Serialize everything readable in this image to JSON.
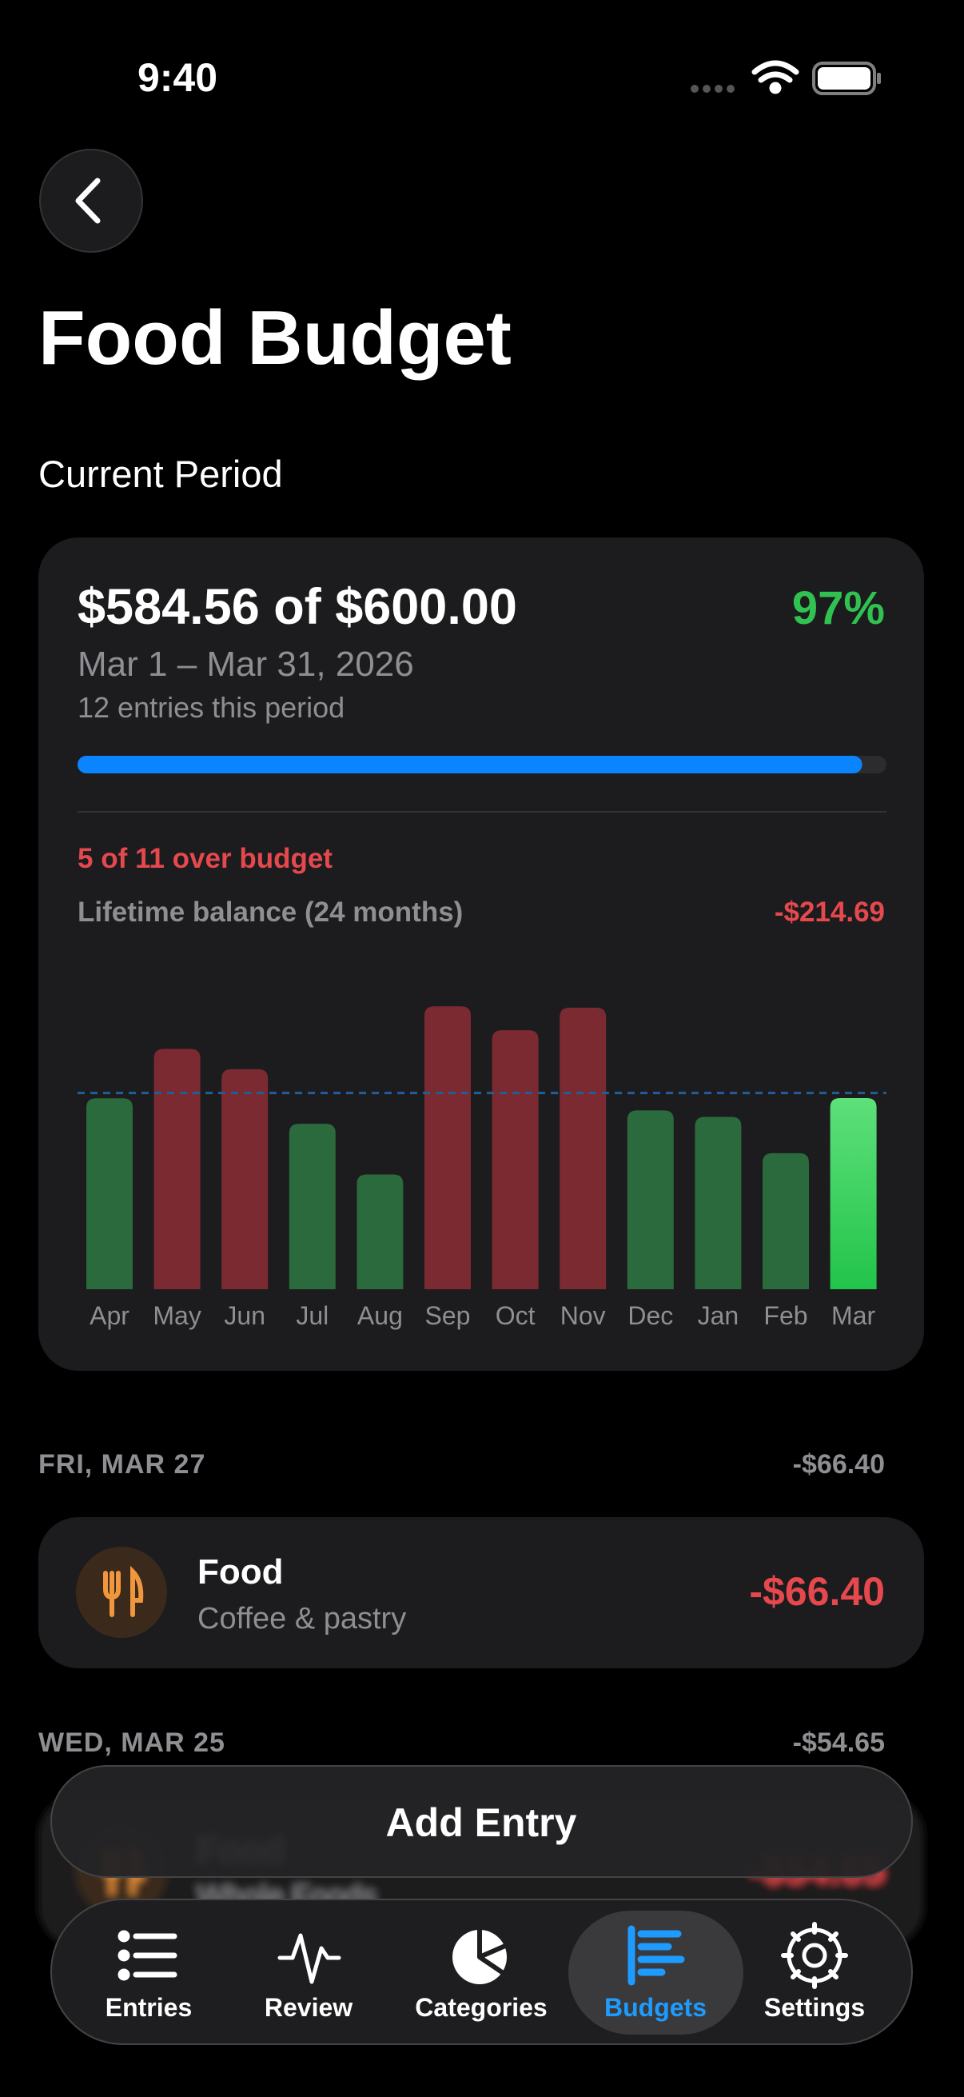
{
  "status": {
    "time": "9:40"
  },
  "header": {
    "title": "Food Budget"
  },
  "section_label": "Current Period",
  "card": {
    "amount": "$584.56 of $600.00",
    "progress": {
      "value": 97,
      "label": "97%",
      "range": [
        0,
        100
      ]
    },
    "dates": "Mar 1 – Mar 31, 2026",
    "entries_count": "12 entries this period",
    "over_budget": "5 of 11 over budget",
    "lifetime_label": "Lifetime balance (24 months)",
    "lifetime_value": "-$214.69"
  },
  "chart_data": {
    "type": "bar",
    "categories": [
      "Apr",
      "May",
      "Jun",
      "Jul",
      "Aug",
      "Sep",
      "Oct",
      "Nov",
      "Dec",
      "Jan",
      "Feb",
      "Mar"
    ],
    "values": [
      584,
      735,
      673,
      506,
      351,
      865,
      792,
      861,
      547,
      527,
      416,
      584.56
    ],
    "colors": [
      "#2a6a3c",
      "#7a2a30",
      "#7a2a30",
      "#2a6a3c",
      "#2a6a3c",
      "#7a2a30",
      "#7a2a30",
      "#7a2a30",
      "#2a6a3c",
      "#2a6a3c",
      "#2a6a3c",
      "#34d05a"
    ],
    "budget_line": 600,
    "ylim": [
      0,
      900
    ]
  },
  "groups": [
    {
      "date": "FRI, MAR 27",
      "total": "-$66.40",
      "entries": [
        {
          "category": "Food",
          "note": "Coffee & pastry",
          "amount": "-$66.40"
        }
      ]
    },
    {
      "date": "WED, MAR 25",
      "total": "-$54.65",
      "entries": [
        {
          "category": "Food",
          "note": "Whole Foods",
          "amount": "-$54.65"
        }
      ]
    }
  ],
  "add_button": "Add Entry",
  "tabs": [
    "Entries",
    "Review",
    "Categories",
    "Budgets",
    "Settings"
  ]
}
